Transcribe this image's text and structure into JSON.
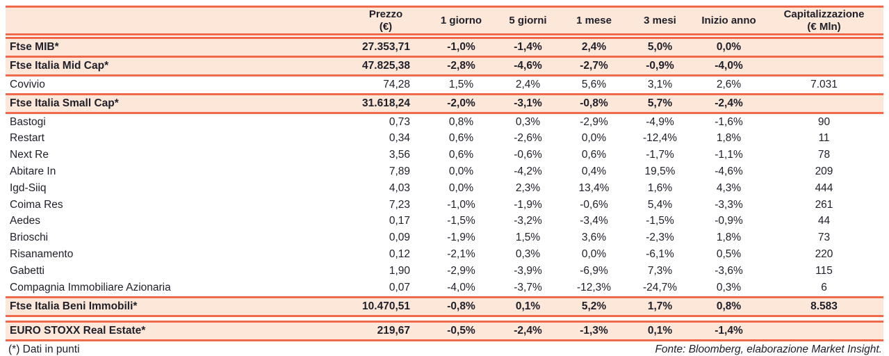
{
  "header": {
    "name_col": "",
    "cols": [
      {
        "id": "prezzo",
        "line1": "Prezzo",
        "line2": "(€)"
      },
      {
        "id": "d1",
        "line1": "1 giorno",
        "line2": ""
      },
      {
        "id": "d5",
        "line1": "5 giorni",
        "line2": ""
      },
      {
        "id": "m1",
        "line1": "1 mese",
        "line2": ""
      },
      {
        "id": "m3",
        "line1": "3 mesi",
        "line2": ""
      },
      {
        "id": "ytd",
        "line1": "Inizio anno",
        "line2": ""
      },
      {
        "id": "cap",
        "line1": "Capitalizzazione",
        "line2": "(€ Mln)"
      }
    ]
  },
  "rows": [
    {
      "name": "Ftse MIB*",
      "style": "index",
      "prezzo": "27.353,71",
      "d1": "-1,0%",
      "d5": "-1,4%",
      "m1": "2,4%",
      "m3": "5,0%",
      "ytd": "0,0%",
      "cap": ""
    },
    {
      "name": "Ftse Italia Mid Cap*",
      "style": "index",
      "prezzo": "47.825,38",
      "d1": "-2,8%",
      "d5": "-4,6%",
      "m1": "-2,7%",
      "m3": "-0,9%",
      "ytd": "-4,0%",
      "cap": ""
    },
    {
      "name": "Covivio",
      "style": "stock",
      "prezzo": "74,28",
      "d1": "1,5%",
      "d5": "2,4%",
      "m1": "5,6%",
      "m3": "3,1%",
      "ytd": "2,6%",
      "cap": "7.031"
    },
    {
      "name": "Ftse Italia Small Cap*",
      "style": "index",
      "prezzo": "31.618,24",
      "d1": "-2,0%",
      "d5": "-3,1%",
      "m1": "-0,8%",
      "m3": "5,7%",
      "ytd": "-2,4%",
      "cap": ""
    },
    {
      "name": "Bastogi",
      "style": "stock",
      "prezzo": "0,73",
      "d1": "0,8%",
      "d5": "0,3%",
      "m1": "-2,9%",
      "m3": "-4,9%",
      "ytd": "-1,6%",
      "cap": "90"
    },
    {
      "name": "Restart",
      "style": "stock",
      "prezzo": "0,34",
      "d1": "0,6%",
      "d5": "-2,6%",
      "m1": "0,0%",
      "m3": "-12,4%",
      "ytd": "1,8%",
      "cap": "11"
    },
    {
      "name": "Next Re",
      "style": "stock",
      "prezzo": "3,56",
      "d1": "0,6%",
      "d5": "-0,6%",
      "m1": "0,6%",
      "m3": "-1,7%",
      "ytd": "-1,1%",
      "cap": "78"
    },
    {
      "name": "Abitare In",
      "style": "stock",
      "prezzo": "7,89",
      "d1": "0,0%",
      "d5": "-4,2%",
      "m1": "0,4%",
      "m3": "19,5%",
      "ytd": "-4,6%",
      "cap": "209"
    },
    {
      "name": "Igd-Siiq",
      "style": "stock",
      "prezzo": "4,03",
      "d1": "0,0%",
      "d5": "2,3%",
      "m1": "13,4%",
      "m3": "1,6%",
      "ytd": "4,3%",
      "cap": "444"
    },
    {
      "name": "Coima Res",
      "style": "stock",
      "prezzo": "7,23",
      "d1": "-1,0%",
      "d5": "-1,9%",
      "m1": "-0,6%",
      "m3": "5,4%",
      "ytd": "-3,3%",
      "cap": "261"
    },
    {
      "name": "Aedes",
      "style": "stock",
      "prezzo": "0,17",
      "d1": "-1,5%",
      "d5": "-3,2%",
      "m1": "-3,4%",
      "m3": "-1,5%",
      "ytd": "-0,9%",
      "cap": "44"
    },
    {
      "name": "Brioschi",
      "style": "stock",
      "prezzo": "0,09",
      "d1": "-1,9%",
      "d5": "1,5%",
      "m1": "3,6%",
      "m3": "-2,3%",
      "ytd": "1,8%",
      "cap": "73"
    },
    {
      "name": "Risanamento",
      "style": "stock",
      "prezzo": "0,12",
      "d1": "-2,1%",
      "d5": "0,3%",
      "m1": "0,0%",
      "m3": "-6,1%",
      "ytd": "0,5%",
      "cap": "220"
    },
    {
      "name": "Gabetti",
      "style": "stock",
      "prezzo": "1,90",
      "d1": "-2,9%",
      "d5": "-3,9%",
      "m1": "-6,9%",
      "m3": "7,3%",
      "ytd": "-3,6%",
      "cap": "115"
    },
    {
      "name": "Compagnia Immobiliare Azionaria",
      "style": "stock",
      "prezzo": "0,07",
      "d1": "-4,0%",
      "d5": "-3,7%",
      "m1": "-12,3%",
      "m3": "-24,7%",
      "ytd": "0,3%",
      "cap": "6"
    },
    {
      "name": "Ftse Italia Beni Immobili*",
      "style": "index",
      "prezzo": "10.470,51",
      "d1": "-0,8%",
      "d5": "0,1%",
      "m1": "5,2%",
      "m3": "1,7%",
      "ytd": "0,8%",
      "cap": "8.583"
    },
    {
      "name": "EURO STOXX Real Estate*",
      "style": "index",
      "separator_before": true,
      "prezzo": "219,67",
      "d1": "-0,5%",
      "d5": "-2,4%",
      "m1": "-1,3%",
      "m3": "0,1%",
      "ytd": "-1,4%",
      "cap": ""
    }
  ],
  "footer": {
    "note": "(*) Dati in punti",
    "source": "Fonte: Bloomberg, elaborazione Market Insight."
  },
  "colors": {
    "accent_line": "#f0694b",
    "row_highlight": "#fce7d8",
    "text": "#20202b"
  }
}
